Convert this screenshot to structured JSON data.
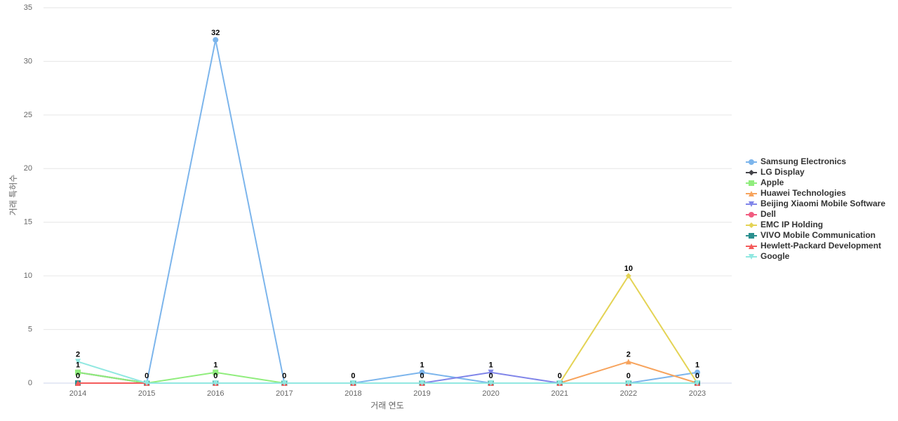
{
  "chart_data": {
    "type": "line",
    "categories": [
      "2014",
      "2015",
      "2016",
      "2017",
      "2018",
      "2019",
      "2020",
      "2021",
      "2022",
      "2023"
    ],
    "x_label": "거래 연도",
    "y_label": "거래 특허수",
    "ylim": [
      0,
      35
    ],
    "yticks": [
      0,
      5,
      10,
      15,
      20,
      25,
      30,
      35
    ],
    "grid": true,
    "legend": "right",
    "series": [
      {
        "name": "Samsung Electronics",
        "color": "#7cb5ec",
        "values": [
          0,
          0,
          32,
          0,
          0,
          1,
          0,
          0,
          0,
          1
        ]
      },
      {
        "name": "LG Display",
        "color": "#434348",
        "values": [
          1,
          0,
          0,
          0,
          0,
          0,
          0,
          0,
          0,
          0
        ]
      },
      {
        "name": "Apple",
        "color": "#90ed7d",
        "values": [
          1,
          0,
          1,
          0,
          0,
          0,
          0,
          0,
          0,
          0
        ]
      },
      {
        "name": "Huawei Technologies",
        "color": "#f7a35c",
        "values": [
          0,
          0,
          0,
          0,
          0,
          0,
          0,
          0,
          2,
          0
        ]
      },
      {
        "name": "Beijing Xiaomi Mobile Software",
        "color": "#8085e9",
        "values": [
          0,
          0,
          0,
          0,
          0,
          0,
          1,
          0,
          0,
          0
        ]
      },
      {
        "name": "Dell",
        "color": "#f15c80",
        "values": [
          0,
          0,
          0,
          0,
          0,
          0,
          0,
          0,
          0,
          0
        ]
      },
      {
        "name": "EMC IP Holding",
        "color": "#e4d354",
        "values": [
          0,
          0,
          0,
          0,
          0,
          0,
          0,
          0,
          10,
          0
        ]
      },
      {
        "name": "VIVO Mobile Communication",
        "color": "#2b908f",
        "values": [
          0,
          0,
          0,
          0,
          0,
          0,
          0,
          0,
          0,
          0
        ]
      },
      {
        "name": "Hewlett-Packard Development",
        "color": "#f45b5b",
        "values": [
          0,
          0,
          0,
          0,
          0,
          0,
          0,
          0,
          0,
          0
        ]
      },
      {
        "name": "Google",
        "color": "#91e8e1",
        "values": [
          2,
          0,
          0,
          0,
          0,
          0,
          0,
          0,
          0,
          0
        ]
      }
    ]
  }
}
